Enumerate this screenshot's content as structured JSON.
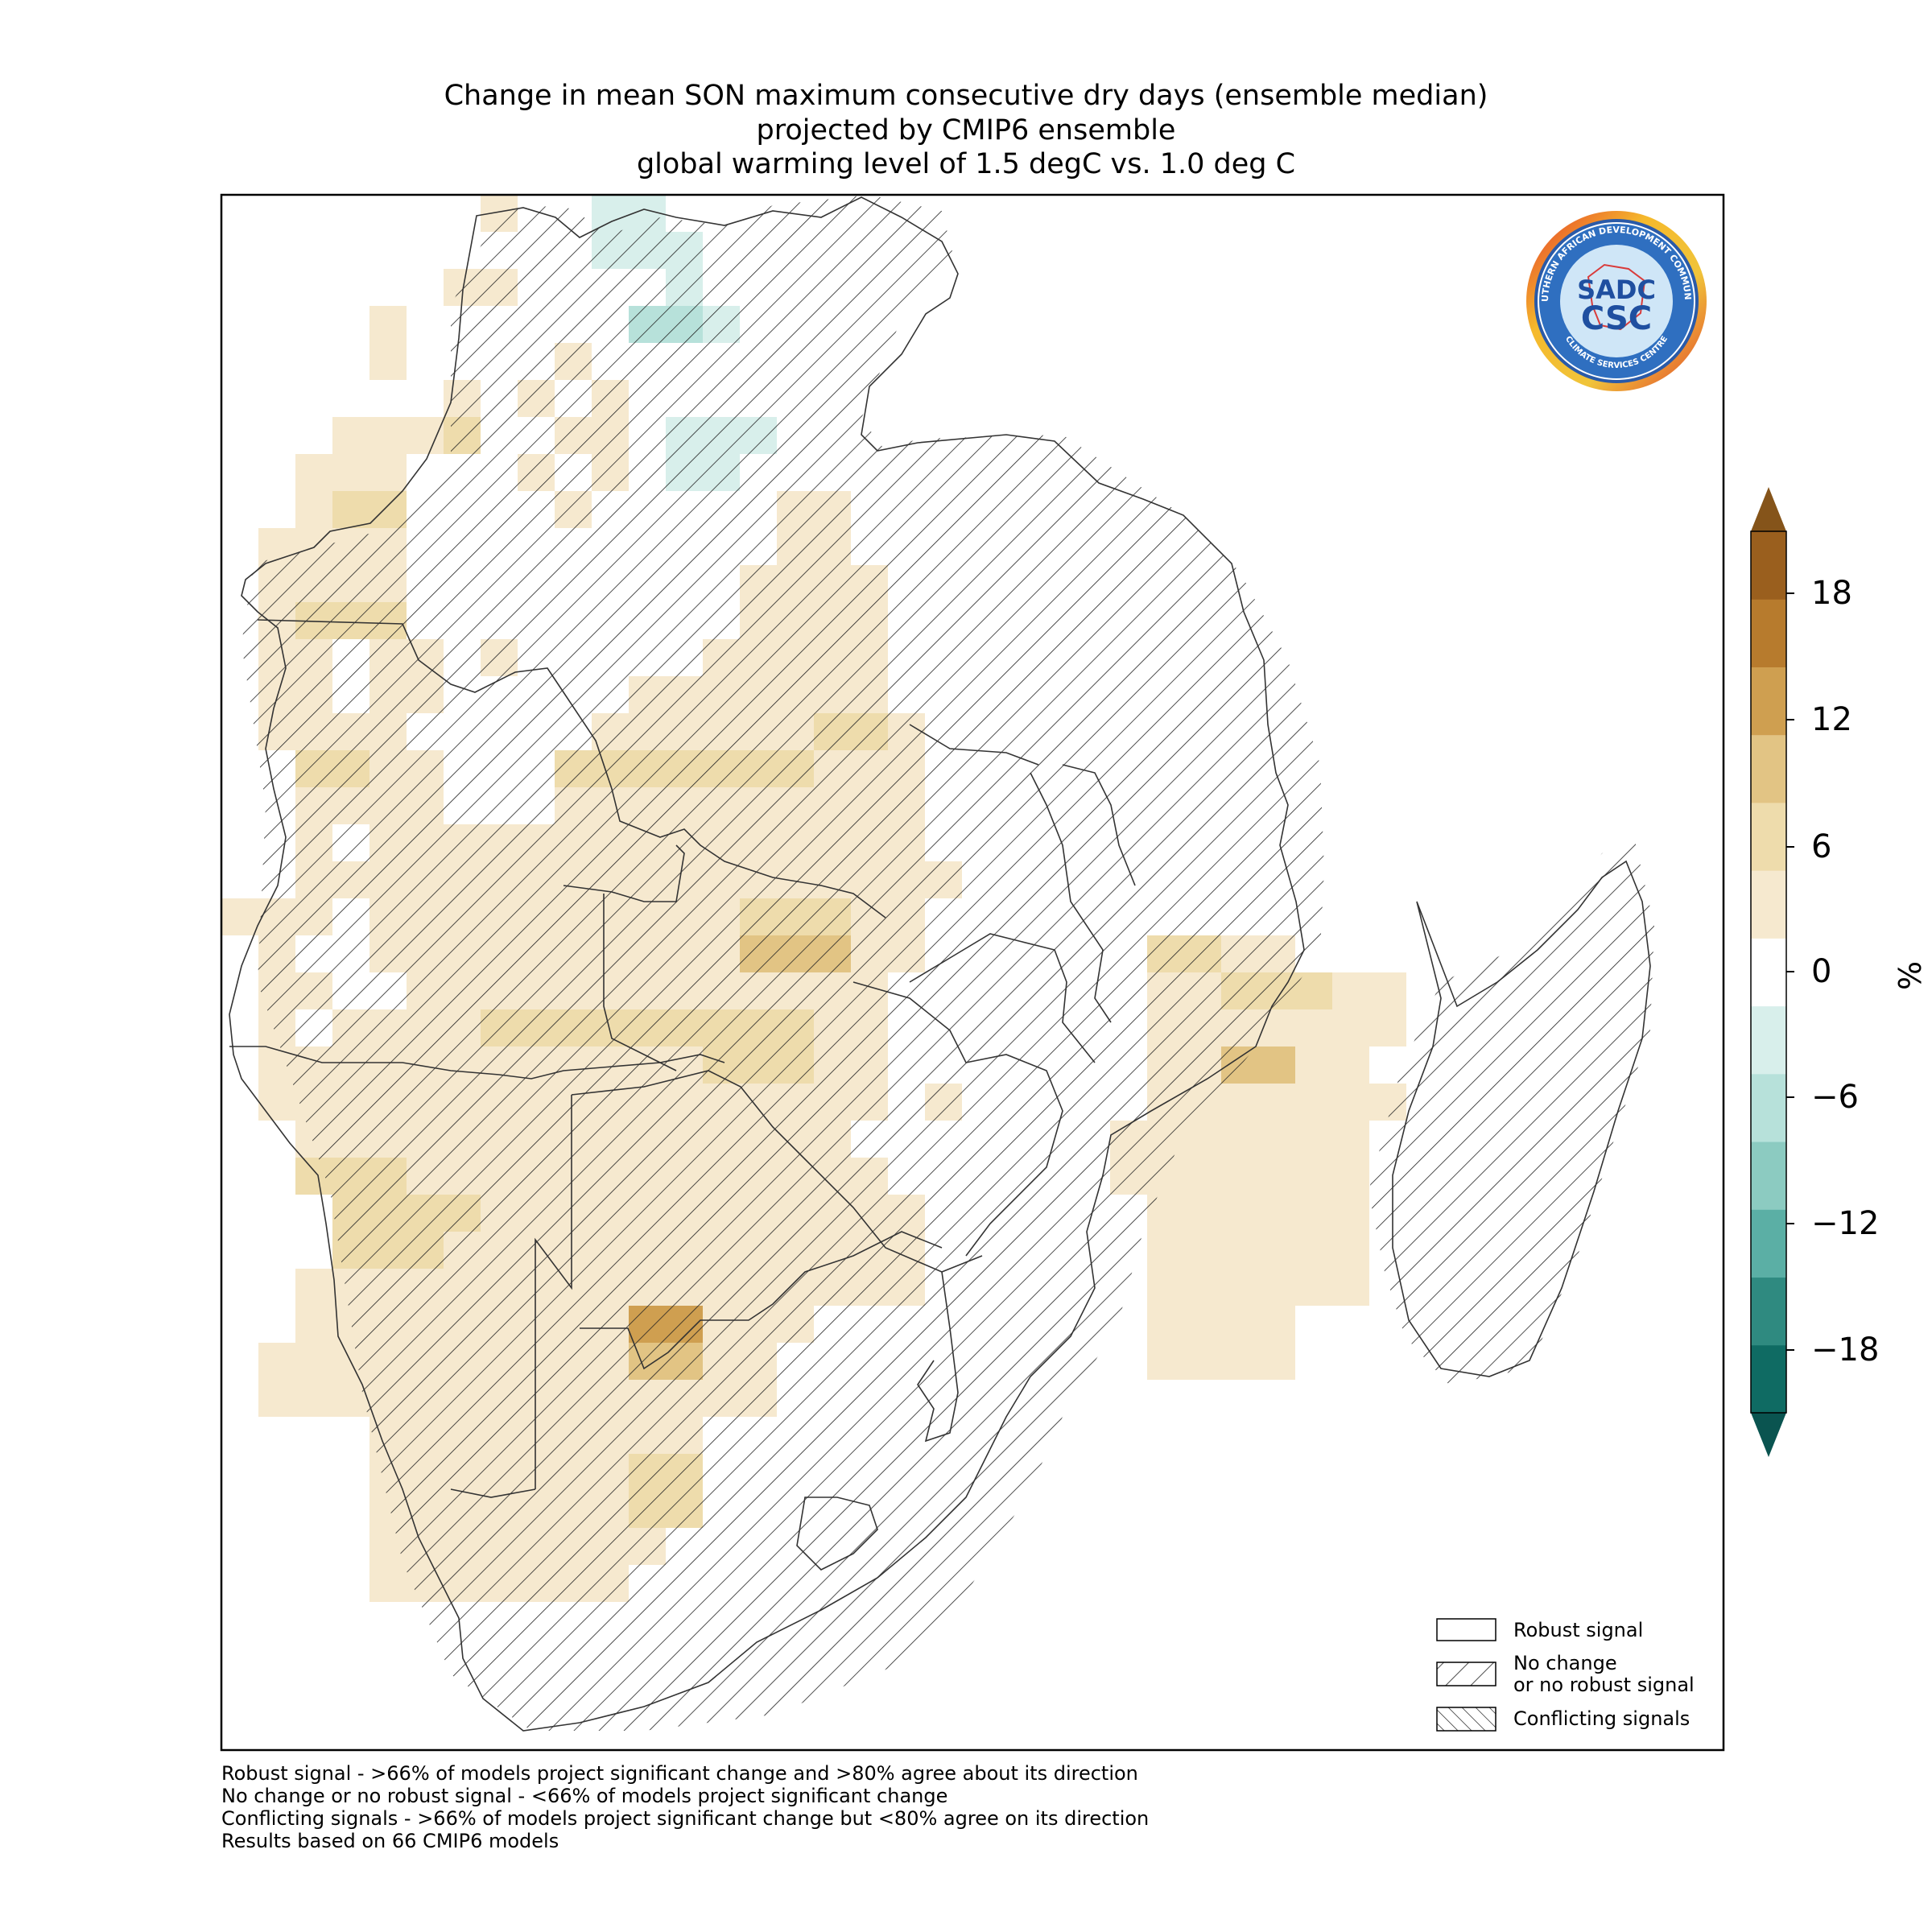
{
  "title": {
    "line1": "Change in mean SON maximum consecutive dry days (ensemble median)",
    "line2": "projected by CMIP6 ensemble",
    "line3": "global warming level of 1.5 degC vs. 1.0 deg C"
  },
  "colorbar": {
    "unit": "%",
    "ticks": [
      "18",
      "12",
      "6",
      "0",
      "−6",
      "−12",
      "−18"
    ],
    "colors": [
      "#0f6b63",
      "#2f8a80",
      "#5bafa5",
      "#8ccbc1",
      "#b7e1da",
      "#d8efeb",
      "#ffffff",
      "#f6e9cf",
      "#eedcac",
      "#e2c484",
      "#cf9f50",
      "#b77b2d",
      "#9a5f1e"
    ],
    "extend_low_color": "#0a5450",
    "extend_high_color": "#85541a"
  },
  "legend": {
    "robust": "Robust signal",
    "nochange_line1": "No change",
    "nochange_line2": "or no robust signal",
    "conflicting": "Conflicting signals"
  },
  "notes": [
    "Robust signal - >66% of models project significant change and >80% agree about its direction",
    "No change or no robust signal - <66% of models project significant change",
    "Conflicting signals - >66% of models project significant change but <80% agree on its direction",
    "Results based on 66 CMIP6 models"
  ],
  "logo": {
    "top_text": "SOUTHERN AFRICAN DEVELOPMENT COMMUNITY",
    "bottom_text": "CLIMATE SERVICES CENTRE",
    "mark1": "SADC",
    "mark2": "CSC"
  }
}
